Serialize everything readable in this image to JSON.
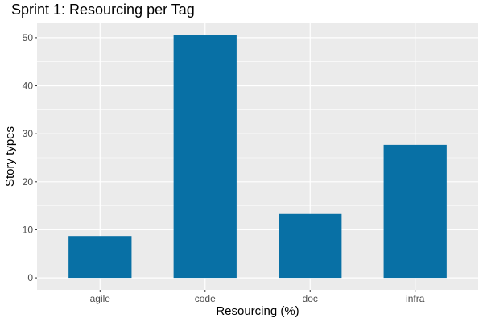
{
  "chart_data": {
    "type": "bar",
    "title": "Sprint 1: Resourcing per Tag",
    "xlabel": "Resourcing (%)",
    "ylabel": "Story types",
    "categories": [
      "agile",
      "code",
      "doc",
      "infra"
    ],
    "values": [
      8.7,
      50.5,
      13.3,
      27.7
    ],
    "ylim": [
      -2.5,
      53
    ],
    "yticks": [
      0,
      10,
      20,
      30,
      40,
      50
    ],
    "bar_color": "#0870A5",
    "panel_color": "#EBEBEB",
    "grid": true,
    "legend": "none"
  }
}
